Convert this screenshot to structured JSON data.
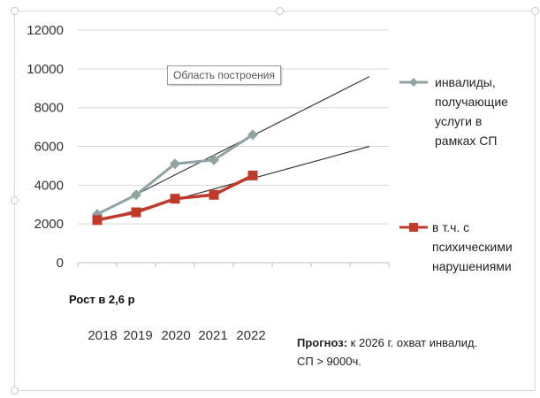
{
  "tooltip": "Область построения",
  "growth_note": "Рост в 2,6 р",
  "forecast": {
    "bold": "Прогноз:",
    "line1": " к 2026 г.  охват инвалид.",
    "line2": "СП > 9000ч."
  },
  "chart_data": {
    "type": "line",
    "categories": [
      "2018",
      "2019",
      "2020",
      "2021",
      "2022"
    ],
    "ylim": [
      0,
      12000
    ],
    "yticks": [
      0,
      2000,
      4000,
      6000,
      8000,
      10000,
      12000
    ],
    "grid": true,
    "legend_position": "right",
    "series": [
      {
        "name": "инвалиды, получающие услуги в рамках СП",
        "legend_lines": [
          "инвалиды,",
          "получающие",
          "услуги в",
          "рамках СП"
        ],
        "color": "#8fa3a3",
        "marker": "diamond",
        "values": [
          2500,
          3500,
          5100,
          5300,
          6600
        ]
      },
      {
        "name": "в т.ч. с психическими нарушениями",
        "legend_lines": [
          "в т.ч. с",
          "психическими",
          "нарушениями"
        ],
        "color": "#c0392b",
        "marker": "square",
        "values": [
          2200,
          2600,
          3300,
          3500,
          4500
        ]
      }
    ],
    "trendlines": [
      {
        "color": "#3a3a3a",
        "from": [
          0,
          2500
        ],
        "to": [
          7,
          9600
        ]
      },
      {
        "color": "#3a3a3a",
        "from": [
          0,
          2150
        ],
        "to": [
          7,
          6000
        ]
      }
    ]
  }
}
